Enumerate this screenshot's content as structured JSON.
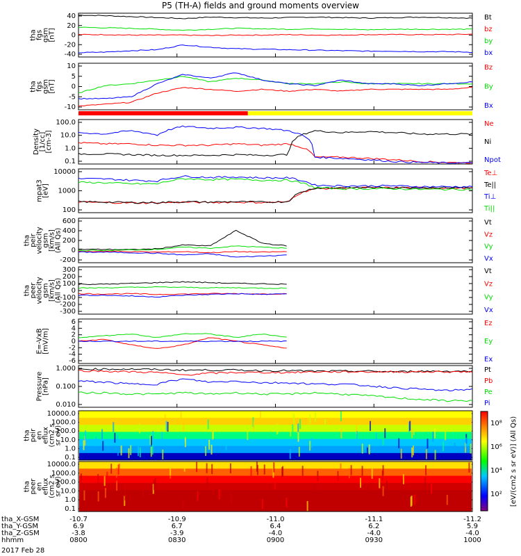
{
  "title": "P5 (TH-A) fields and ground moments overview",
  "date": "2017 Feb 28",
  "colors": {
    "black": "#000000",
    "red": "#ff0000",
    "green": "#00e000",
    "blue": "#0000ff",
    "yellow": "#ffff00"
  },
  "footer": {
    "rows": [
      {
        "label": "tha_X-GSM",
        "values": [
          "-10.7",
          "-10.9",
          "-11.0",
          "-11.1",
          "-11.2"
        ]
      },
      {
        "label": "tha_Y-GSM",
        "values": [
          "6.9",
          "6.7",
          "6.4",
          "6.2",
          "5.9"
        ]
      },
      {
        "label": "tha_Z-GSM",
        "values": [
          "-3.8",
          "-3.9",
          "-4.0",
          "-4.0",
          "-4.0"
        ]
      },
      {
        "label": "hhmm",
        "values": [
          "0800",
          "0830",
          "0900",
          "0930",
          "1000"
        ]
      }
    ]
  },
  "chart_data": [
    {
      "type": "line",
      "id": "fgs",
      "ylabel": [
        "tha",
        "fgs",
        "gsm",
        "[nT]"
      ],
      "ylim": [
        -45,
        45
      ],
      "yticks": [
        "40",
        "20",
        "0",
        "-20",
        "-40"
      ],
      "series": [
        {
          "name": "Bt",
          "color": "black",
          "values": [
            41,
            40,
            38,
            36,
            34,
            37,
            36,
            35,
            36,
            37,
            36,
            35,
            36,
            37,
            36,
            35
          ]
        },
        {
          "name": "bz",
          "color": "red",
          "values": [
            1,
            1,
            0,
            0,
            0,
            -1,
            0,
            0,
            1,
            0,
            0,
            1,
            1,
            1,
            1,
            2
          ]
        },
        {
          "name": "by",
          "color": "green",
          "values": [
            16,
            15,
            14,
            12,
            10,
            12,
            14,
            13,
            12,
            13,
            12,
            11,
            12,
            12,
            12,
            12
          ]
        },
        {
          "name": "bx",
          "color": "blue",
          "values": [
            -36,
            -35,
            -32,
            -30,
            -20,
            -25,
            -28,
            -29,
            -30,
            -31,
            -32,
            -33,
            -33,
            -34,
            -34,
            -35
          ]
        }
      ]
    },
    {
      "type": "line",
      "id": "fgs_zoom",
      "ylabel": [
        "tha",
        "fgs",
        "gsm",
        "[nT]"
      ],
      "ylim": [
        -14,
        11
      ],
      "yticks": [
        "10",
        "5",
        "0",
        "-5",
        "-10"
      ],
      "series": [
        {
          "name": "Bz",
          "color": "red",
          "values": [
            -12,
            -11,
            -10,
            -5,
            -2,
            -3,
            -4,
            -3,
            -4,
            -3,
            -4,
            -3,
            -3,
            -3,
            -3,
            -2
          ]
        },
        {
          "name": "By",
          "color": "green",
          "values": [
            -5,
            -1,
            0,
            2,
            4,
            1,
            3,
            2,
            0,
            0,
            1,
            0,
            0,
            0,
            0,
            0
          ]
        },
        {
          "name": "Bx",
          "color": "blue",
          "values": [
            -8,
            -8,
            -7,
            0,
            5,
            3,
            6,
            2,
            0,
            -1,
            2,
            0,
            0,
            -1,
            0,
            1
          ]
        }
      ],
      "bars": [
        {
          "from": 0.0,
          "to": 0.43,
          "color": "red"
        },
        {
          "from": 0.43,
          "to": 1.0,
          "color": "yellow"
        }
      ]
    },
    {
      "type": "line",
      "id": "density",
      "ylabel": [
        "Density",
        "[1/cc]",
        "[cm-3]"
      ],
      "log": true,
      "ylim": [
        0.1,
        120
      ],
      "yticks": [
        "100.0",
        "10.0",
        "1.0",
        "0.1"
      ],
      "series": [
        {
          "name": "Ne",
          "color": "red",
          "values": [
            3,
            2.5,
            2.5,
            2,
            2,
            2,
            2.5,
            2,
            2.5,
            0.3,
            0.3,
            0.25,
            0.2,
            0.15,
            0.13,
            0.12
          ]
        },
        {
          "name": "Ni",
          "color": "black",
          "values": [
            0.5,
            0.5,
            0.45,
            0.4,
            0.4,
            0.4,
            0.45,
            0.4,
            0.45,
            20,
            15,
            18,
            15,
            12,
            12,
            12
          ]
        },
        {
          "name": "Npot",
          "color": "blue",
          "values": [
            15,
            12,
            20,
            10,
            40,
            30,
            35,
            30,
            20,
            0.3,
            0.25,
            0.2,
            0.15,
            0.13,
            0.12,
            0.12
          ]
        }
      ]
    },
    {
      "type": "line",
      "id": "temps",
      "ylabel": [
        "mpat3",
        "[eV]"
      ],
      "log": true,
      "ylim": [
        20,
        10000
      ],
      "yticks": [
        "10000",
        "1000",
        "100"
      ],
      "series": [
        {
          "name": "Te⊥",
          "color": "red",
          "values": [
            90,
            85,
            80,
            80,
            90,
            85,
            90,
            85,
            90,
            600,
            650,
            700,
            700,
            700,
            650,
            650
          ]
        },
        {
          "name": "Te||",
          "color": "black",
          "values": [
            95,
            90,
            85,
            85,
            95,
            90,
            95,
            90,
            95,
            650,
            700,
            700,
            700,
            700,
            700,
            700
          ]
        },
        {
          "name": "Ti⊥",
          "color": "blue",
          "values": [
            2500,
            2400,
            2000,
            1800,
            3500,
            3000,
            3200,
            2800,
            2800,
            1000,
            900,
            900,
            900,
            800,
            800,
            800
          ]
        },
        {
          "name": "Ti||",
          "color": "green",
          "values": [
            1500,
            1400,
            1200,
            1200,
            2500,
            2200,
            2300,
            2000,
            2000,
            700,
            600,
            600,
            600,
            550,
            550,
            550
          ]
        }
      ]
    },
    {
      "type": "line",
      "id": "vel_gsm",
      "ylabel": [
        "tha",
        "peir",
        "velocity",
        "gsm",
        "[km/s]",
        "(All Qs)"
      ],
      "ylim": [
        -200,
        600
      ],
      "yticks": [
        "600",
        "400",
        "200",
        "0",
        "-200"
      ],
      "series": [
        {
          "name": "Vt",
          "color": "black",
          "values": [
            40,
            40,
            35,
            50,
            120,
            100,
            380,
            150,
            100,
            null,
            null,
            null,
            null,
            null,
            null,
            null
          ]
        },
        {
          "name": "Vz",
          "color": "red",
          "values": [
            0,
            5,
            0,
            -10,
            0,
            -20,
            0,
            -10,
            0,
            null,
            null,
            null,
            null,
            null,
            null,
            null
          ]
        },
        {
          "name": "Vy",
          "color": "green",
          "values": [
            20,
            20,
            30,
            40,
            80,
            60,
            100,
            80,
            60,
            null,
            null,
            null,
            null,
            null,
            null,
            null
          ]
        },
        {
          "name": "Vx",
          "color": "blue",
          "values": [
            -10,
            -10,
            -20,
            -30,
            -60,
            -40,
            -100,
            -80,
            -60,
            null,
            null,
            null,
            null,
            null,
            null,
            null
          ]
        }
      ]
    },
    {
      "type": "line",
      "id": "vel_gse",
      "ylabel": [
        "tha",
        "peer",
        "velocity",
        "gsm",
        "[km/s]",
        "(All Qs)"
      ],
      "ylim": [
        -300,
        300
      ],
      "yticks": [
        "300",
        "200",
        "100",
        "0",
        "-100",
        "-200",
        "-300"
      ],
      "series": [
        {
          "name": "Vt",
          "color": "black",
          "values": [
            80,
            80,
            90,
            100,
            110,
            100,
            90,
            85,
            80,
            null,
            null,
            null,
            null,
            null,
            null,
            null
          ]
        },
        {
          "name": "Vz",
          "color": "red",
          "values": [
            -40,
            -45,
            -40,
            -50,
            -45,
            -40,
            -40,
            -45,
            -40,
            null,
            null,
            null,
            null,
            null,
            null,
            null
          ]
        },
        {
          "name": "Vy",
          "color": "green",
          "values": [
            30,
            35,
            40,
            45,
            40,
            35,
            35,
            30,
            30,
            null,
            null,
            null,
            null,
            null,
            null,
            null
          ]
        },
        {
          "name": "Vx",
          "color": "blue",
          "values": [
            -60,
            -60,
            -70,
            -80,
            -60,
            -50,
            -40,
            -50,
            -40,
            null,
            null,
            null,
            null,
            null,
            null,
            null
          ]
        }
      ]
    },
    {
      "type": "line",
      "id": "efield",
      "ylabel": [
        "E=-VxB",
        "[mV/m]"
      ],
      "ylim": [
        -6,
        6
      ],
      "yticks": [
        "6",
        "4",
        "2",
        "0",
        "-2",
        "-4",
        "-6"
      ],
      "series": [
        {
          "name": "Ez",
          "color": "red",
          "values": [
            0,
            0.5,
            -1,
            -2,
            -1,
            1,
            0,
            -1,
            -2,
            null,
            null,
            null,
            null,
            null,
            null,
            null
          ]
        },
        {
          "name": "Ey",
          "color": "green",
          "values": [
            1,
            1.5,
            2,
            1,
            2,
            2,
            1,
            2,
            1,
            null,
            null,
            null,
            null,
            null,
            null,
            null
          ]
        },
        {
          "name": "Ex",
          "color": "blue",
          "values": [
            0,
            0,
            0,
            0,
            0,
            0,
            0,
            0,
            0,
            null,
            null,
            null,
            null,
            null,
            null,
            null
          ]
        }
      ]
    },
    {
      "type": "line",
      "id": "pressure",
      "ylabel": [
        "Pressure",
        "[nPa]"
      ],
      "log": true,
      "ylim": [
        0.004,
        1.3
      ],
      "yticks": [
        "1.000",
        "0.100",
        "0.010"
      ],
      "series": [
        {
          "name": "Pt",
          "color": "black",
          "values": [
            0.8,
            0.8,
            0.8,
            0.75,
            0.7,
            0.7,
            0.7,
            0.65,
            0.65,
            0.6,
            0.6,
            0.6,
            0.55,
            0.6,
            0.6,
            0.6
          ]
        },
        {
          "name": "Pb",
          "color": "red",
          "values": [
            0.65,
            0.6,
            0.55,
            0.5,
            0.35,
            0.45,
            0.5,
            0.5,
            0.5,
            0.55,
            0.55,
            0.55,
            0.55,
            0.55,
            0.55,
            0.55
          ]
        },
        {
          "name": "Pe",
          "color": "green",
          "values": [
            0.03,
            0.03,
            0.025,
            0.025,
            0.03,
            0.025,
            0.03,
            0.025,
            0.025,
            0.03,
            0.025,
            0.02,
            0.015,
            0.012,
            0.01,
            0.01
          ]
        },
        {
          "name": "Pi",
          "color": "blue",
          "values": [
            0.15,
            0.13,
            0.1,
            0.1,
            0.2,
            0.13,
            0.15,
            0.12,
            0.12,
            0.1,
            0.1,
            0.08,
            0.06,
            0.05,
            0.04,
            0.05
          ]
        }
      ]
    },
    {
      "type": "heatmap",
      "id": "peir_spec",
      "ylabel": [
        "tha",
        "peir",
        "en",
        "eflux",
        "(cm2 s",
        "sr eV)"
      ],
      "yticks": [
        "10000.0",
        "1000.0",
        "100.0",
        "10.0",
        "1.0",
        "0.1"
      ]
    },
    {
      "type": "heatmap",
      "id": "peer_spec",
      "ylabel": [
        "tha",
        "peer",
        "en",
        "eflux",
        "(cm2 s",
        "sr eV)"
      ],
      "yticks": [
        "10000.0",
        "1000.0",
        "100.0",
        "10.0",
        "1.0",
        "0.1"
      ]
    }
  ],
  "colorbar": {
    "label": "[eV/(cm2 s sr eV)]  (All Qs)",
    "ticks": [
      "10⁸",
      "10⁶",
      "10⁴",
      "10²"
    ]
  }
}
